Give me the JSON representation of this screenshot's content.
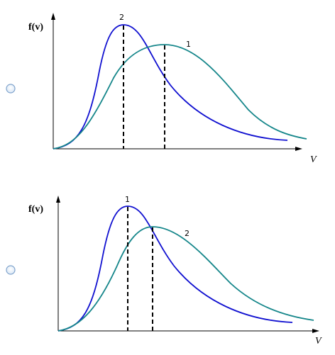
{
  "options": [
    {
      "ylabel": "f(v)",
      "xlabel": "V",
      "curve_labels": [
        "2",
        "1"
      ]
    },
    {
      "ylabel": "f(v)",
      "xlabel": "V",
      "curve_labels": [
        "1",
        "2"
      ]
    }
  ]
}
